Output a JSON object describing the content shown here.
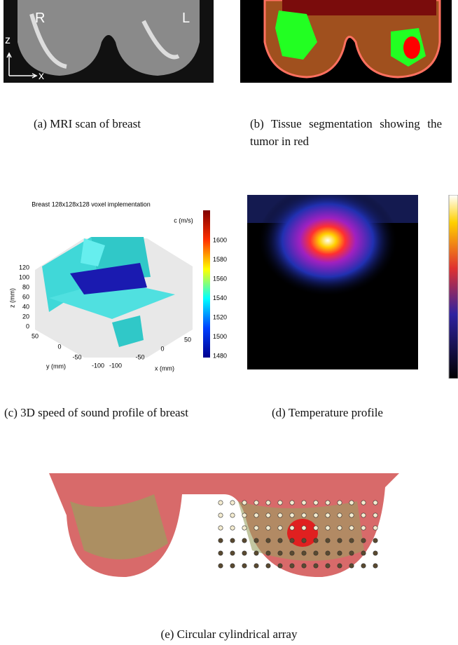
{
  "figures": [
    {
      "caption": "(a) MRI scan of breast",
      "labels": [
        "R",
        "L",
        "z",
        "x"
      ]
    },
    {
      "caption": "(b) Tissue segmentation showing the tumor in red"
    },
    {
      "caption": "(c) 3D speed of sound profile of breast",
      "plot": {
        "title": "Breast 128x128x128 voxel implementation",
        "colorbar_label": "c (m/s)",
        "colorbar_ticks": [
          "1600",
          "1580",
          "1560",
          "1540",
          "1520",
          "1500",
          "1480"
        ],
        "z_ticks": [
          "120",
          "100",
          "80",
          "60",
          "40",
          "20",
          "0"
        ],
        "y_ticks": [
          "50",
          "0",
          "-50",
          "-100"
        ],
        "x_ticks": [
          "-100",
          "-50",
          "0",
          "50"
        ],
        "z_label": "z (mm)",
        "y_label": "y (mm)",
        "x_label": "x (mm)"
      }
    },
    {
      "caption": "(d) Temperature profile"
    },
    {
      "caption": "(e) Circular cylindrical array"
    }
  ]
}
